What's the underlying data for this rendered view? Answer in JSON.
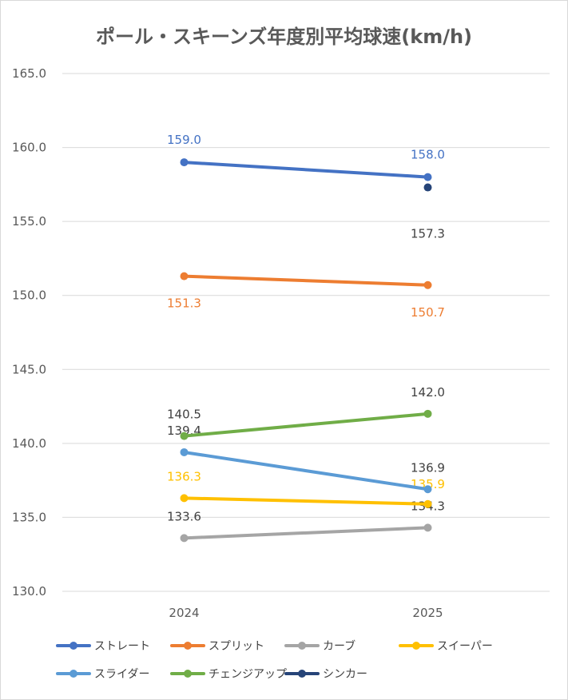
{
  "chart_data": {
    "type": "line",
    "title": "ポール・スキーンズ年度別平均球速(km/h)",
    "categories": [
      "2024",
      "2025"
    ],
    "ylim": [
      130.0,
      165.0
    ],
    "yticks": [
      "130.0",
      "135.0",
      "140.0",
      "145.0",
      "150.0",
      "155.0",
      "160.0",
      "165.0"
    ],
    "grid": true,
    "legend_position": "bottom",
    "series": [
      {
        "name": "ストレート",
        "color": "#4472c4",
        "values": [
          159.0,
          158.0
        ],
        "labels": [
          "159.0",
          "158.0"
        ]
      },
      {
        "name": "スプリット",
        "color": "#ed7d31",
        "values": [
          151.3,
          150.7
        ],
        "labels": [
          "151.3",
          "150.7"
        ]
      },
      {
        "name": "カーブ",
        "color": "#a5a5a5",
        "values": [
          133.6,
          134.3
        ],
        "labels": [
          "133.6",
          "134.3"
        ]
      },
      {
        "name": "スイーパー",
        "color": "#ffc000",
        "values": [
          136.3,
          135.9
        ],
        "labels": [
          "136.3",
          "135.9"
        ]
      },
      {
        "name": "スライダー",
        "color": "#5b9bd5",
        "values": [
          139.4,
          136.9
        ],
        "labels": [
          "139.4",
          "136.9"
        ]
      },
      {
        "name": "チェンジアップ",
        "color": "#70ad47",
        "values": [
          140.5,
          142.0
        ],
        "labels": [
          "140.5",
          "142.0"
        ]
      },
      {
        "name": "シンカー",
        "color": "#264478",
        "values": [
          null,
          157.3
        ],
        "labels": [
          null,
          "157.3"
        ]
      }
    ]
  }
}
